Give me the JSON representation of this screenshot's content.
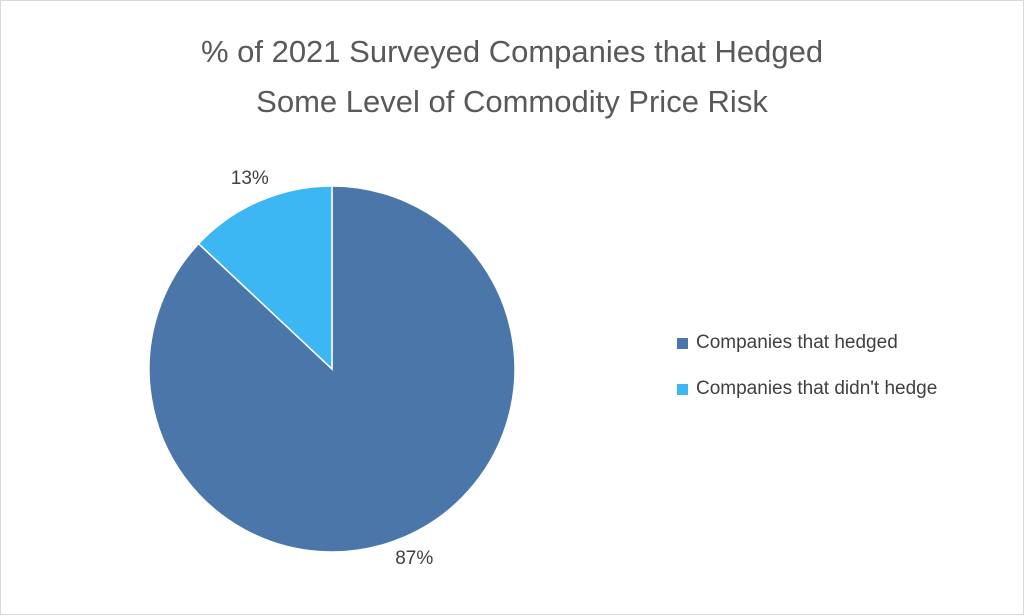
{
  "chart_data": {
    "type": "pie",
    "title_lines": [
      "% of 2021 Surveyed Companies that Hedged",
      "Some Level of Commodity Price Risk"
    ],
    "slices": [
      {
        "label": "Companies that hedged",
        "value": 87,
        "display": "87%",
        "color": "#4a76aa"
      },
      {
        "label": "Companies that didn't hedge",
        "value": 13,
        "display": "13%",
        "color": "#3db7f4"
      }
    ],
    "legend_position": "right"
  }
}
